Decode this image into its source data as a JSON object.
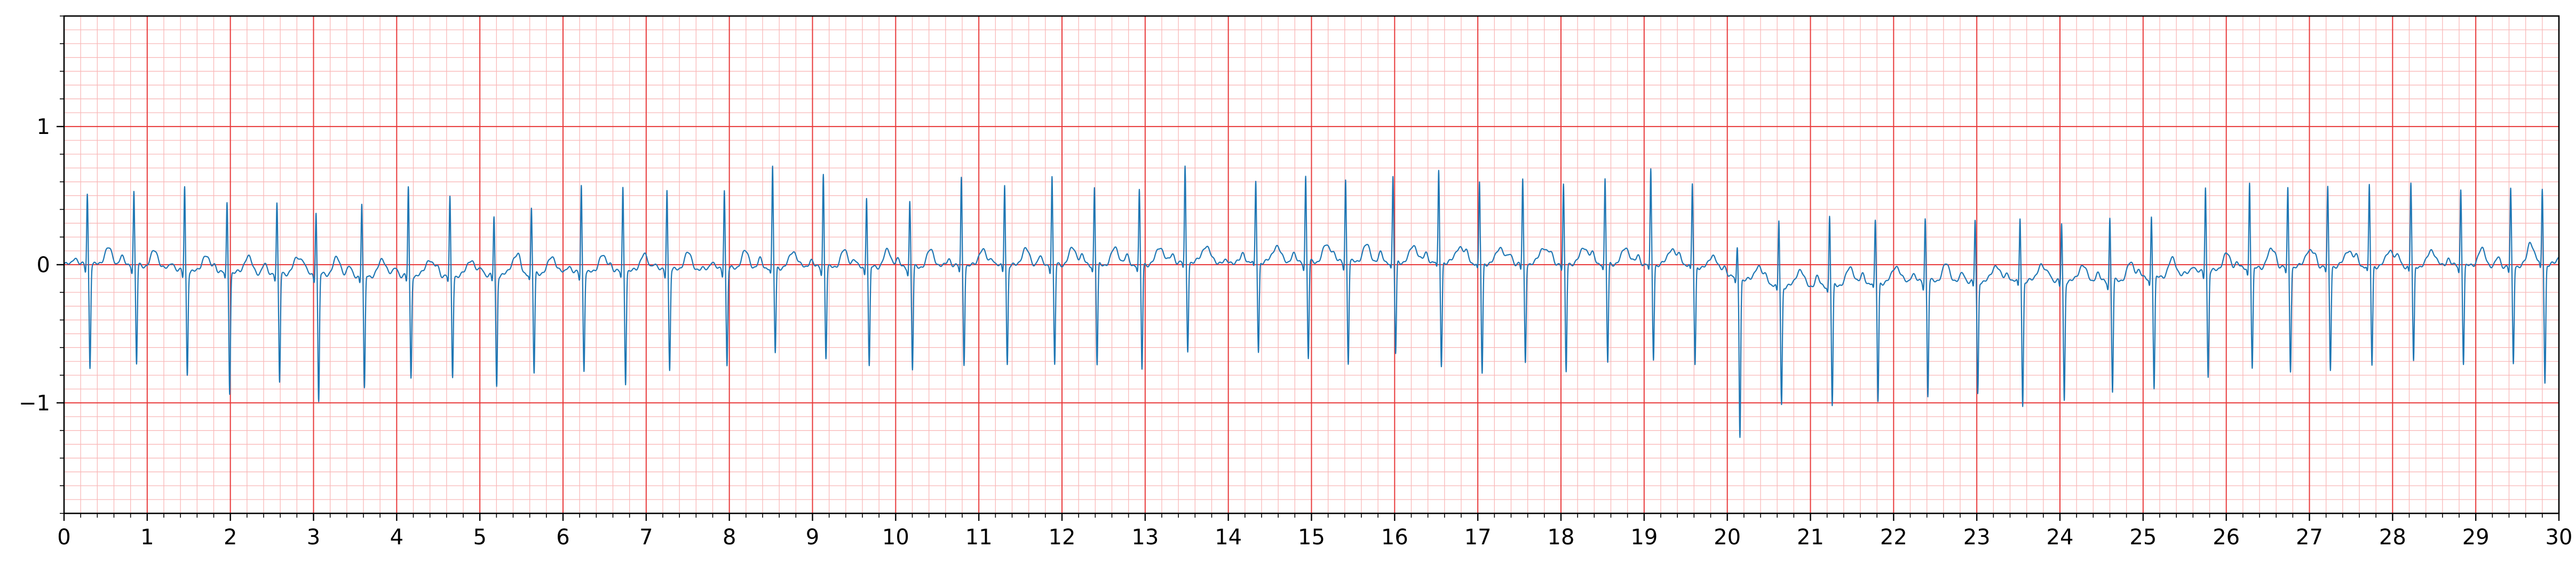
{
  "chart_data": {
    "type": "line",
    "title": "",
    "xlabel": "",
    "ylabel": "",
    "xlim": [
      0,
      30
    ],
    "ylim": [
      -1.8,
      1.8
    ],
    "grid": "on",
    "legend": "none",
    "x_ticks": [
      0,
      1,
      2,
      3,
      4,
      5,
      6,
      7,
      8,
      9,
      10,
      11,
      12,
      13,
      14,
      15,
      16,
      17,
      18,
      19,
      20,
      21,
      22,
      23,
      24,
      25,
      26,
      27,
      28,
      29,
      30
    ],
    "x_tick_labels": [
      "0",
      "1",
      "2",
      "3",
      "4",
      "5",
      "6",
      "7",
      "8",
      "9",
      "10",
      "11",
      "12",
      "13",
      "14",
      "15",
      "16",
      "17",
      "18",
      "19",
      "20",
      "21",
      "22",
      "23",
      "24",
      "25",
      "26",
      "27",
      "28",
      "29",
      "30"
    ],
    "y_ticks": [
      -1,
      0,
      1
    ],
    "y_tick_labels": [
      "−1",
      "0",
      "1"
    ],
    "colors": {
      "trace": "#1f77b4",
      "major_grid": "#e8393a",
      "minor_grid": "#f9b8b8",
      "axes": "#000000"
    },
    "series": [
      {
        "beats": [
          {
            "t": 0.28,
            "r": 0.52,
            "s": -0.74,
            "b": 0.0
          },
          {
            "t": 0.84,
            "r": 0.53,
            "s": -0.72,
            "b": 0.0
          },
          {
            "t": 1.45,
            "r": 0.62,
            "s": -0.74,
            "b": -0.05
          },
          {
            "t": 1.96,
            "r": 0.51,
            "s": -0.86,
            "b": -0.06
          },
          {
            "t": 2.56,
            "r": 0.5,
            "s": -0.8,
            "b": -0.06
          },
          {
            "t": 3.03,
            "r": 0.46,
            "s": -0.93,
            "b": -0.07
          },
          {
            "t": 3.58,
            "r": 0.52,
            "s": -0.83,
            "b": -0.08
          },
          {
            "t": 4.14,
            "r": 0.64,
            "s": -0.74,
            "b": -0.08
          },
          {
            "t": 4.64,
            "r": 0.56,
            "s": -0.73,
            "b": -0.08
          },
          {
            "t": 5.17,
            "r": 0.43,
            "s": -0.8,
            "b": -0.08
          },
          {
            "t": 5.62,
            "r": 0.46,
            "s": -0.73,
            "b": -0.06
          },
          {
            "t": 6.22,
            "r": 0.64,
            "s": -0.7,
            "b": -0.06
          },
          {
            "t": 6.72,
            "r": 0.61,
            "s": -0.8,
            "b": -0.05
          },
          {
            "t": 7.25,
            "r": 0.59,
            "s": -0.72,
            "b": -0.04
          },
          {
            "t": 7.94,
            "r": 0.58,
            "s": -0.7,
            "b": -0.03
          },
          {
            "t": 8.52,
            "r": 0.72,
            "s": -0.62,
            "b": -0.02
          },
          {
            "t": 9.13,
            "r": 0.68,
            "s": -0.65,
            "b": -0.02
          },
          {
            "t": 9.65,
            "r": 0.52,
            "s": -0.72,
            "b": -0.02
          },
          {
            "t": 10.17,
            "r": 0.48,
            "s": -0.74,
            "b": -0.02
          },
          {
            "t": 10.79,
            "r": 0.64,
            "s": -0.7,
            "b": -0.01
          },
          {
            "t": 11.31,
            "r": 0.6,
            "s": -0.71,
            "b": -0.01
          },
          {
            "t": 11.88,
            "r": 0.64,
            "s": -0.73,
            "b": 0.0
          },
          {
            "t": 12.39,
            "r": 0.56,
            "s": -0.73,
            "b": 0.0
          },
          {
            "t": 12.93,
            "r": 0.53,
            "s": -0.76,
            "b": 0.0
          },
          {
            "t": 13.48,
            "r": 0.68,
            "s": -0.64,
            "b": 0.02
          },
          {
            "t": 14.33,
            "r": 0.58,
            "s": -0.65,
            "b": 0.02
          },
          {
            "t": 14.93,
            "r": 0.62,
            "s": -0.7,
            "b": 0.02
          },
          {
            "t": 15.41,
            "r": 0.6,
            "s": -0.73,
            "b": 0.02
          },
          {
            "t": 15.98,
            "r": 0.61,
            "s": -0.67,
            "b": 0.02
          },
          {
            "t": 16.53,
            "r": 0.65,
            "s": -0.75,
            "b": 0.02
          },
          {
            "t": 17.02,
            "r": 0.58,
            "s": -0.8,
            "b": 0.01
          },
          {
            "t": 17.54,
            "r": 0.6,
            "s": -0.72,
            "b": 0.01
          },
          {
            "t": 18.03,
            "r": 0.56,
            "s": -0.79,
            "b": 0.01
          },
          {
            "t": 18.53,
            "r": 0.6,
            "s": -0.72,
            "b": 0.01
          },
          {
            "t": 19.08,
            "r": 0.68,
            "s": -0.68,
            "b": 0.0
          },
          {
            "t": 19.58,
            "r": 0.58,
            "s": -0.72,
            "b": 0.0
          },
          {
            "t": 20.12,
            "r": 0.22,
            "s": -1.13,
            "b": -0.1
          },
          {
            "t": 20.62,
            "r": 0.48,
            "s": -0.85,
            "b": -0.16
          },
          {
            "t": 21.23,
            "r": 0.5,
            "s": -0.88,
            "b": -0.15
          },
          {
            "t": 21.78,
            "r": 0.44,
            "s": -0.86,
            "b": -0.13
          },
          {
            "t": 22.38,
            "r": 0.46,
            "s": -0.83,
            "b": -0.12
          },
          {
            "t": 22.98,
            "r": 0.44,
            "s": -0.82,
            "b": -0.12
          },
          {
            "t": 23.52,
            "r": 0.46,
            "s": -0.9,
            "b": -0.12
          },
          {
            "t": 24.02,
            "r": 0.42,
            "s": -0.86,
            "b": -0.12
          },
          {
            "t": 24.6,
            "r": 0.46,
            "s": -0.8,
            "b": -0.12
          },
          {
            "t": 25.1,
            "r": 0.46,
            "s": -0.8,
            "b": -0.1
          },
          {
            "t": 25.75,
            "r": 0.62,
            "s": -0.76,
            "b": -0.05
          },
          {
            "t": 26.28,
            "r": 0.64,
            "s": -0.72,
            "b": -0.03
          },
          {
            "t": 26.74,
            "r": 0.57,
            "s": -0.74,
            "b": -0.02
          },
          {
            "t": 27.22,
            "r": 0.56,
            "s": -0.75,
            "b": -0.01
          },
          {
            "t": 27.72,
            "r": 0.58,
            "s": -0.72,
            "b": -0.01
          },
          {
            "t": 28.22,
            "r": 0.6,
            "s": -0.7,
            "b": -0.01
          },
          {
            "t": 28.82,
            "r": 0.56,
            "s": -0.7,
            "b": -0.01
          },
          {
            "t": 29.42,
            "r": 0.55,
            "s": -0.71,
            "b": -0.01
          },
          {
            "t": 29.8,
            "r": 0.55,
            "s": -0.85,
            "b": 0.0
          }
        ]
      }
    ]
  }
}
